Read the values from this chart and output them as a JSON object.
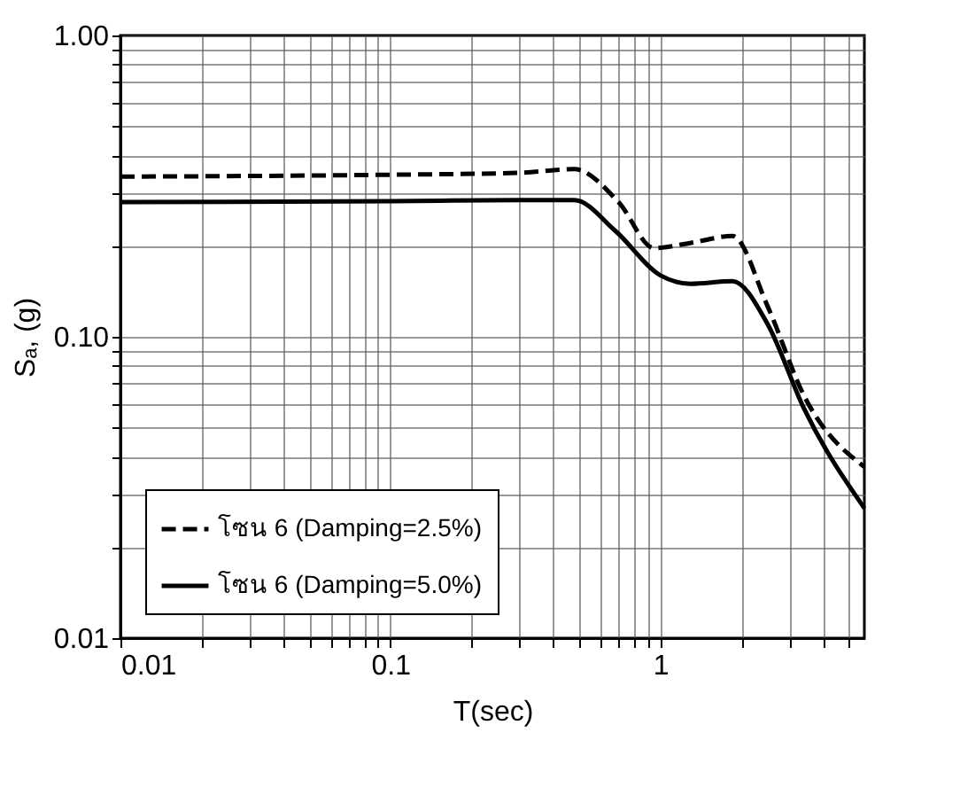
{
  "chart_data": {
    "type": "line",
    "xlabel": "T(sec)",
    "ylabel": "Sₐ, (g)",
    "log": "xy",
    "grid": true,
    "legend": "bottom left",
    "marker": "none",
    "xlim": [
      0.01,
      5.7
    ],
    "ylim": [
      0.01,
      1.0
    ],
    "xticks": [
      0.01,
      {
        "value": 0.02,
        "label": null
      },
      {
        "value": 0.03,
        "label": null
      },
      {
        "value": 0.04,
        "label": null
      },
      {
        "value": 0.05,
        "label": null
      },
      {
        "value": 0.06,
        "label": null
      },
      {
        "value": 0.07,
        "label": null
      },
      {
        "value": 0.08,
        "label": null
      },
      {
        "value": 0.09,
        "label": null
      },
      0.1,
      {
        "value": 0.2,
        "label": null
      },
      {
        "value": 0.3,
        "label": null
      },
      {
        "value": 0.4,
        "label": null
      },
      {
        "value": 0.5,
        "label": null
      },
      {
        "value": 0.6,
        "label": null
      },
      {
        "value": 0.7,
        "label": null
      },
      {
        "value": 0.8,
        "label": null
      },
      {
        "value": 0.9,
        "label": null
      },
      1,
      {
        "value": 2,
        "label": null
      },
      {
        "value": 3,
        "label": null
      },
      {
        "value": 4,
        "label": null
      },
      {
        "value": 5,
        "label": null
      }
    ],
    "yticks": [
      {
        "value": 0.01,
        "label": "0.01"
      },
      {
        "value": 0.02,
        "label": null
      },
      {
        "value": 0.03,
        "label": null
      },
      {
        "value": 0.04,
        "label": null
      },
      {
        "value": 0.05,
        "label": null
      },
      {
        "value": 0.06,
        "label": null
      },
      {
        "value": 0.07,
        "label": null
      },
      {
        "value": 0.08,
        "label": null
      },
      {
        "value": 0.09,
        "label": null
      },
      {
        "value": 0.1,
        "label": "0.10"
      },
      {
        "value": 0.2,
        "label": null
      },
      {
        "value": 0.3,
        "label": null
      },
      {
        "value": 0.4,
        "label": null
      },
      {
        "value": 0.5,
        "label": null
      },
      {
        "value": 0.6,
        "label": null
      },
      {
        "value": 0.7,
        "label": null
      },
      {
        "value": 0.8,
        "label": null
      },
      {
        "value": 0.9,
        "label": null
      },
      {
        "value": 1.0,
        "label": "1.00"
      }
    ],
    "series": [
      {
        "name": "โซน 6 (Damping=2.5%)",
        "color": "#000000",
        "line_style": "dashed",
        "x": [
          0.01,
          0.1,
          0.3,
          0.48,
          0.7,
          0.95,
          1.3,
          1.85,
          2.5,
          3.4,
          5.7
        ],
        "values": [
          0.34,
          0.345,
          0.35,
          0.36,
          0.28,
          0.197,
          0.205,
          0.216,
          0.126,
          0.064,
          0.037
        ]
      },
      {
        "name": "โซน 6 (Damping=5.0%)",
        "color": "#000000",
        "line_style": "solid",
        "x": [
          0.01,
          0.1,
          0.3,
          0.48,
          0.68,
          1.0,
          1.29,
          1.85,
          2.5,
          3.4,
          5.7
        ],
        "values": [
          0.28,
          0.282,
          0.284,
          0.284,
          0.225,
          0.16,
          0.15,
          0.153,
          0.11,
          0.058,
          0.027
        ]
      }
    ]
  }
}
